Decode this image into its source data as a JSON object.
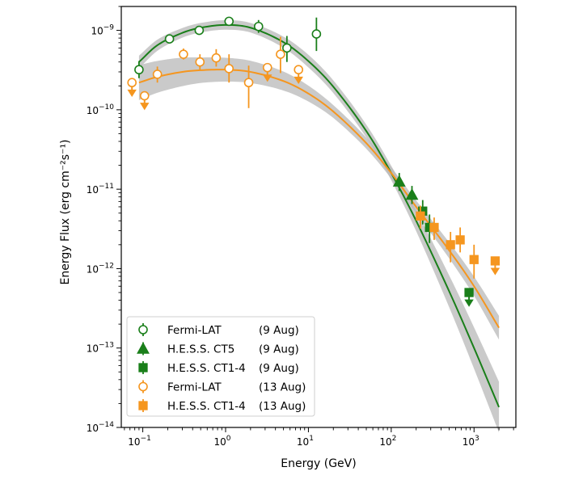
{
  "chart_data": {
    "type": "scatter",
    "xlabel": "Energy (GeV)",
    "ylabel": "Energy Flux (erg cm⁻²s⁻¹)",
    "xscale": "log",
    "yscale": "log",
    "xlim": [
      0.055,
      3200
    ],
    "ylim": [
      1e-14,
      2e-09
    ],
    "x_ticks": [
      {
        "value": 0.1,
        "base": "10",
        "exp": "−1"
      },
      {
        "value": 1,
        "base": "10",
        "exp": "0"
      },
      {
        "value": 10,
        "base": "10",
        "exp": "1"
      },
      {
        "value": 100,
        "base": "10",
        "exp": "2"
      },
      {
        "value": 1000,
        "base": "10",
        "exp": "3"
      }
    ],
    "y_ticks": [
      {
        "value": 1e-14,
        "base": "10",
        "exp": "−14"
      },
      {
        "value": 1e-13,
        "base": "10",
        "exp": "−13"
      },
      {
        "value": 1e-12,
        "base": "10",
        "exp": "−12"
      },
      {
        "value": 1e-11,
        "base": "10",
        "exp": "−11"
      },
      {
        "value": 1e-10,
        "base": "10",
        "exp": "−10"
      },
      {
        "value": 1e-09,
        "base": "10",
        "exp": "−9"
      }
    ],
    "legend_position": "lower-left",
    "colors": {
      "aug9": "#1a7f1a",
      "aug13": "#f5961f",
      "band": "#b8b8b8"
    },
    "series": [
      {
        "name": "Fermi-LAT",
        "date": "(9 Aug)",
        "color": "#1a7f1a",
        "marker": "open-circle",
        "points": [
          {
            "x": 0.09,
            "y": 3.2e-10,
            "ylo": 2.5e-10,
            "yhi": 4.1e-10
          },
          {
            "x": 0.21,
            "y": 7.8e-10,
            "ylo": 6.9e-10,
            "yhi": 8.8e-10
          },
          {
            "x": 0.48,
            "y": 1e-09,
            "ylo": 9.2e-10,
            "yhi": 1.08e-09
          },
          {
            "x": 1.1,
            "y": 1.3e-09,
            "ylo": 1.18e-09,
            "yhi": 1.42e-09
          },
          {
            "x": 2.5,
            "y": 1.12e-09,
            "ylo": 9.3e-10,
            "yhi": 1.35e-09
          },
          {
            "x": 5.5,
            "y": 6e-10,
            "ylo": 4e-10,
            "yhi": 8.5e-10
          },
          {
            "x": 12.5,
            "y": 9e-10,
            "ylo": 5.5e-10,
            "yhi": 1.45e-09
          }
        ]
      },
      {
        "name": "H.E.S.S. CT5",
        "date": "(9 Aug)",
        "color": "#1a7f1a",
        "marker": "filled-triangle",
        "points": [
          {
            "x": 125,
            "y": 1.25e-11,
            "ylo": 9.5e-12,
            "yhi": 1.6e-11
          },
          {
            "x": 178,
            "y": 8.5e-12,
            "ylo": 6.5e-12,
            "yhi": 1.1e-11
          }
        ]
      },
      {
        "name": "H.E.S.S. CT1-4",
        "date": "(9 Aug)",
        "color": "#1a7f1a",
        "marker": "filled-square",
        "points": [
          {
            "x": 240,
            "y": 5.3e-12,
            "ylo": 3.6e-12,
            "yhi": 7.3e-12
          },
          {
            "x": 290,
            "y": 3.3e-12,
            "ylo": 2.1e-12,
            "yhi": 4.8e-12
          }
        ],
        "upper_limits": [
          {
            "x": 870,
            "y": 5e-13
          }
        ]
      },
      {
        "name": "Fermi-LAT",
        "date": "(13 Aug)",
        "color": "#f5961f",
        "marker": "open-circle",
        "points": [
          {
            "x": 0.15,
            "y": 2.8e-10,
            "ylo": 2.2e-10,
            "yhi": 3.5e-10
          },
          {
            "x": 0.31,
            "y": 5e-10,
            "ylo": 4.3e-10,
            "yhi": 5.9e-10
          },
          {
            "x": 0.49,
            "y": 4e-10,
            "ylo": 3.2e-10,
            "yhi": 5e-10
          },
          {
            "x": 0.77,
            "y": 4.5e-10,
            "ylo": 3.5e-10,
            "yhi": 5.8e-10
          },
          {
            "x": 1.1,
            "y": 3.3e-10,
            "ylo": 2.2e-10,
            "yhi": 5e-10
          },
          {
            "x": 1.9,
            "y": 2.2e-10,
            "ylo": 1.05e-10,
            "yhi": 3.6e-10
          },
          {
            "x": 4.6,
            "y": 5e-10,
            "ylo": 2.9e-10,
            "yhi": 8.3e-10
          }
        ],
        "upper_limits": [
          {
            "x": 0.074,
            "y": 2.2e-10
          },
          {
            "x": 0.105,
            "y": 1.5e-10
          },
          {
            "x": 3.2,
            "y": 3.4e-10
          },
          {
            "x": 7.6,
            "y": 3.2e-10
          }
        ]
      },
      {
        "name": "H.E.S.S. CT1-4",
        "date": "(13 Aug)",
        "color": "#f5961f",
        "marker": "filled-square",
        "points": [
          {
            "x": 225,
            "y": 4.6e-12,
            "ylo": 3.2e-12,
            "yhi": 6.2e-12
          },
          {
            "x": 330,
            "y": 3.3e-12,
            "ylo": 2.3e-12,
            "yhi": 4.4e-12
          },
          {
            "x": 520,
            "y": 2e-12,
            "ylo": 1.2e-12,
            "yhi": 2.9e-12
          },
          {
            "x": 680,
            "y": 2.3e-12,
            "ylo": 1.6e-12,
            "yhi": 3.3e-12
          },
          {
            "x": 1000,
            "y": 1.3e-12,
            "ylo": 7.5e-13,
            "yhi": 2e-12
          }
        ],
        "upper_limits": [
          {
            "x": 1800,
            "y": 1.25e-12
          }
        ]
      }
    ],
    "models": [
      {
        "color": "#1a7f1a",
        "x": [
          0.09,
          0.15,
          0.3,
          0.5,
          1,
          2,
          5,
          10,
          20,
          50,
          100,
          200,
          500,
          1000,
          2000
        ],
        "y": [
          4e-10,
          6.5e-10,
          9.3e-10,
          1.08e-09,
          1.17e-09,
          1.08e-09,
          7.1e-10,
          4.1e-10,
          1.95e-10,
          5.4e-11,
          1.6e-11,
          4e-12,
          5.2e-13,
          1e-13,
          1.8e-14
        ],
        "band_frac": [
          0.08,
          0.07,
          0.06,
          0.06,
          0.06,
          0.06,
          0.07,
          0.08,
          0.08,
          0.08,
          0.09,
          0.13,
          0.2,
          0.26,
          0.32
        ]
      },
      {
        "color": "#f5961f",
        "x": [
          0.09,
          0.15,
          0.3,
          0.5,
          1,
          2,
          5,
          10,
          20,
          50,
          100,
          200,
          500,
          1000,
          2000
        ],
        "y": [
          2.2e-10,
          2.6e-10,
          3e-10,
          3.15e-10,
          3.2e-10,
          3e-10,
          2.3e-10,
          1.6e-10,
          9.5e-11,
          3.8e-11,
          1.6e-11,
          6e-12,
          1.7e-12,
          6e-13,
          1.8e-13
        ],
        "band_frac": [
          0.22,
          0.2,
          0.18,
          0.16,
          0.15,
          0.14,
          0.12,
          0.1,
          0.08,
          0.07,
          0.07,
          0.08,
          0.1,
          0.12,
          0.15
        ]
      }
    ]
  }
}
